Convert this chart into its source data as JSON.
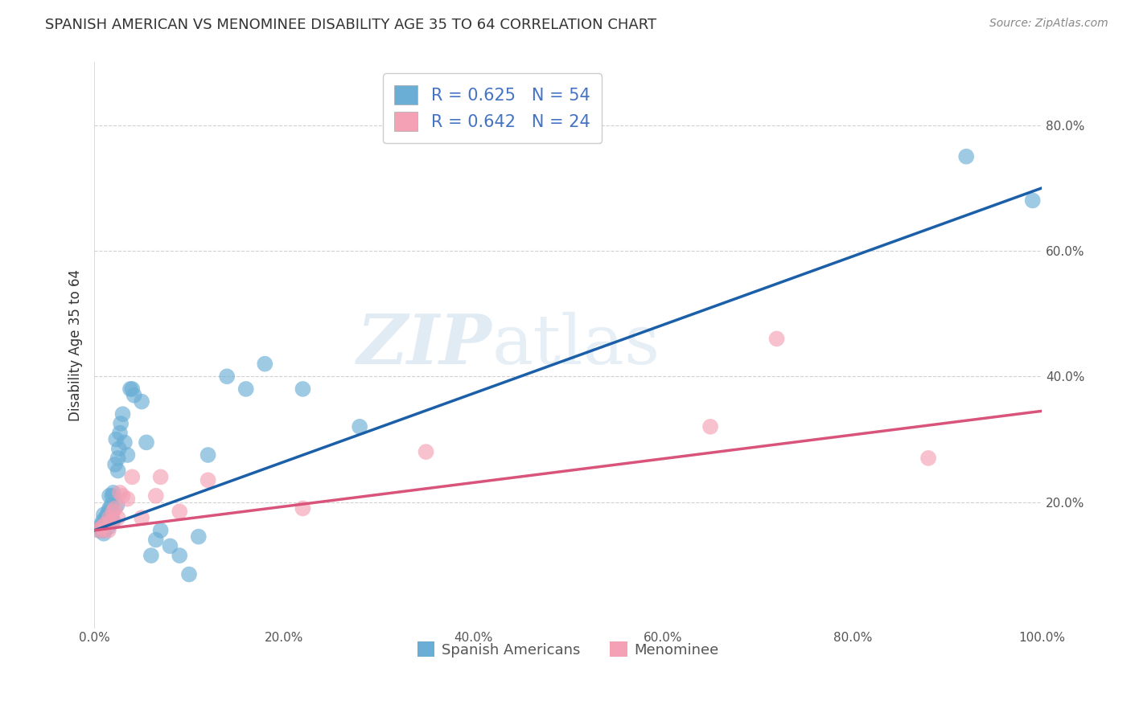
{
  "title": "SPANISH AMERICAN VS MENOMINEE DISABILITY AGE 35 TO 64 CORRELATION CHART",
  "source": "Source: ZipAtlas.com",
  "xlabel": "",
  "ylabel": "Disability Age 35 to 64",
  "xlim": [
    0.0,
    1.0
  ],
  "ylim": [
    0.0,
    0.9
  ],
  "xticks": [
    0.0,
    0.2,
    0.4,
    0.6,
    0.8,
    1.0
  ],
  "yticks": [
    0.2,
    0.4,
    0.6,
    0.8
  ],
  "xtick_labels": [
    "0.0%",
    "20.0%",
    "40.0%",
    "60.0%",
    "80.0%",
    "100.0%"
  ],
  "ytick_labels": [
    "20.0%",
    "40.0%",
    "60.0%",
    "80.0%"
  ],
  "legend_labels": [
    "Spanish Americans",
    "Menominee"
  ],
  "r_blue": 0.625,
  "n_blue": 54,
  "r_pink": 0.642,
  "n_pink": 24,
  "blue_color": "#6aaed6",
  "pink_color": "#f4a0b5",
  "line_blue": "#1a5fa8",
  "line_pink": "#d9547a",
  "watermark": "ZIPatlas",
  "blue_x": [
    0.005,
    0.007,
    0.008,
    0.009,
    0.01,
    0.01,
    0.01,
    0.012,
    0.012,
    0.013,
    0.013,
    0.014,
    0.015,
    0.015,
    0.015,
    0.016,
    0.016,
    0.017,
    0.018,
    0.018,
    0.019,
    0.02,
    0.02,
    0.022,
    0.023,
    0.024,
    0.025,
    0.025,
    0.026,
    0.027,
    0.028,
    0.03,
    0.032,
    0.035,
    0.038,
    0.04,
    0.042,
    0.05,
    0.055,
    0.06,
    0.065,
    0.07,
    0.08,
    0.09,
    0.1,
    0.11,
    0.12,
    0.14,
    0.16,
    0.18,
    0.22,
    0.28,
    0.92,
    0.99
  ],
  "blue_y": [
    0.155,
    0.16,
    0.165,
    0.17,
    0.15,
    0.155,
    0.18,
    0.165,
    0.175,
    0.17,
    0.175,
    0.18,
    0.16,
    0.175,
    0.185,
    0.19,
    0.21,
    0.175,
    0.18,
    0.195,
    0.21,
    0.17,
    0.215,
    0.26,
    0.3,
    0.195,
    0.25,
    0.27,
    0.285,
    0.31,
    0.325,
    0.34,
    0.295,
    0.275,
    0.38,
    0.38,
    0.37,
    0.36,
    0.295,
    0.115,
    0.14,
    0.155,
    0.13,
    0.115,
    0.085,
    0.145,
    0.275,
    0.4,
    0.38,
    0.42,
    0.38,
    0.32,
    0.75,
    0.68
  ],
  "pink_x": [
    0.005,
    0.008,
    0.01,
    0.012,
    0.015,
    0.016,
    0.018,
    0.02,
    0.022,
    0.025,
    0.027,
    0.03,
    0.035,
    0.04,
    0.05,
    0.065,
    0.07,
    0.09,
    0.12,
    0.22,
    0.35,
    0.65,
    0.72,
    0.88
  ],
  "pink_y": [
    0.155,
    0.16,
    0.155,
    0.165,
    0.155,
    0.175,
    0.17,
    0.185,
    0.19,
    0.175,
    0.215,
    0.21,
    0.205,
    0.24,
    0.175,
    0.21,
    0.24,
    0.185,
    0.235,
    0.19,
    0.28,
    0.32,
    0.46,
    0.27
  ],
  "background_color": "#ffffff",
  "grid_color": "#cccccc",
  "blue_line_x0": 0.0,
  "blue_line_y0": 0.155,
  "blue_line_x1": 1.0,
  "blue_line_y1": 0.7,
  "pink_line_x0": 0.0,
  "pink_line_y0": 0.155,
  "pink_line_x1": 1.0,
  "pink_line_y1": 0.345
}
